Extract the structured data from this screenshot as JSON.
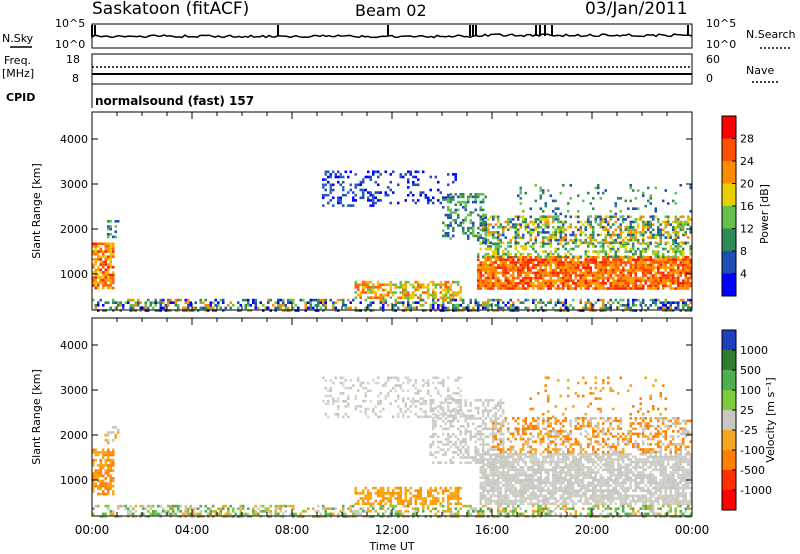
{
  "header": {
    "station": "Saskatoon (fitACF)",
    "beam": "Beam 02",
    "date": "03/Jan/2011"
  },
  "nsky_panel": {
    "left_label": "N.Sky",
    "right_label": "N.Search",
    "left_ticks": [
      "10^5",
      "10^0"
    ],
    "right_ticks": [
      "10^5",
      "10^0"
    ]
  },
  "freq_panel": {
    "left_label_1": "Freq.",
    "left_label_2": "[MHz]",
    "right_label": "Nave",
    "left_ticks": [
      "18",
      "8"
    ],
    "right_ticks": [
      "60",
      "0"
    ]
  },
  "cpid": {
    "label": "CPID",
    "value": "normalsound (fast) 157"
  },
  "chart_data": [
    {
      "type": "heatmap",
      "quantity": "Power",
      "ylabel": "Slant Range [km]",
      "xlabel": "Time UT",
      "x_range": [
        "00:00",
        "24:00"
      ],
      "xticks": [
        "00:00",
        "04:00",
        "08:00",
        "12:00",
        "16:00",
        "20:00",
        "00:00"
      ],
      "yticks": [
        1000,
        2000,
        3000,
        4000
      ],
      "ylim": [
        200,
        4600
      ],
      "colorbar": {
        "label": "Power [dB]",
        "ticks": [
          "4",
          "8",
          "12",
          "16",
          "20",
          "24",
          "28"
        ],
        "colors": [
          "#0000ff",
          "#1f4fb4",
          "#2e8b57",
          "#66c04e",
          "#e8d000",
          "#ff8c00",
          "#ff5000",
          "#ff0000"
        ]
      }
    },
    {
      "type": "heatmap",
      "quantity": "Velocity",
      "ylabel": "Slant Range [km]",
      "xlabel": "Time UT",
      "x_range": [
        "00:00",
        "24:00"
      ],
      "xticks": [
        "00:00",
        "04:00",
        "08:00",
        "12:00",
        "16:00",
        "20:00",
        "00:00"
      ],
      "yticks": [
        1000,
        2000,
        3000,
        4000
      ],
      "ylim": [
        200,
        4600
      ],
      "colorbar": {
        "label": "Velocity [m s⁻¹]",
        "ticks": [
          "1000",
          "500",
          "100",
          "25",
          "-25",
          "-100",
          "-500",
          "-1000"
        ],
        "colors": [
          "#1f3fbf",
          "#2e7d32",
          "#4caf50",
          "#7ccc3c",
          "#c8c8c0",
          "#f5a623",
          "#ff7f00",
          "#ff3000",
          "#ff0000"
        ]
      }
    }
  ],
  "time_axis": {
    "label": "Time UT",
    "ticks": [
      "00:00",
      "04:00",
      "08:00",
      "12:00",
      "16:00",
      "20:00",
      "00:00"
    ]
  },
  "power_features": [
    {
      "h0": 0.0,
      "h1": 0.9,
      "r0": 700,
      "r1": 1700,
      "colors": [
        "#ff2000",
        "#ff6000",
        "#ffa000",
        "#e8d000"
      ],
      "d": 0.75
    },
    {
      "h0": 0.6,
      "h1": 1.2,
      "r0": 1800,
      "r1": 2200,
      "colors": [
        "#2e8b57",
        "#1f4fb4",
        "#66c04e"
      ],
      "d": 0.4
    },
    {
      "h0": 9.2,
      "h1": 11.6,
      "r0": 2500,
      "r1": 3300,
      "colors": [
        "#1f4fb4",
        "#0000ff",
        "#2e5fbf"
      ],
      "d": 0.35
    },
    {
      "h0": 11.6,
      "h1": 14.6,
      "r0": 2600,
      "r1": 3300,
      "colors": [
        "#1f4fb4",
        "#0000ff"
      ],
      "d": 0.18
    },
    {
      "h0": 14.0,
      "h1": 15.8,
      "r0": 1800,
      "r1": 2800,
      "colors": [
        "#1f4fb4",
        "#2e8b57",
        "#66c04e"
      ],
      "d": 0.4
    },
    {
      "h0": 10.5,
      "h1": 14.8,
      "r0": 450,
      "r1": 850,
      "colors": [
        "#ff6000",
        "#ffa000",
        "#e8d000",
        "#66c04e"
      ],
      "d": 0.6
    },
    {
      "h0": 15.4,
      "h1": 24.0,
      "r0": 700,
      "r1": 1400,
      "colors": [
        "#ff2000",
        "#ff5000",
        "#ff8c00",
        "#ffa000"
      ],
      "d": 0.85
    },
    {
      "h0": 15.4,
      "h1": 24.0,
      "r0": 1400,
      "r1": 1700,
      "colors": [
        "#66c04e",
        "#e8d000",
        "#2e8b57"
      ],
      "d": 0.45
    },
    {
      "h0": 15.4,
      "h1": 24.0,
      "r0": 1700,
      "r1": 2300,
      "colors": [
        "#ff8c00",
        "#e8d000",
        "#66c04e",
        "#2e8b57",
        "#1f4fb4"
      ],
      "d": 0.55
    },
    {
      "h0": 17.0,
      "h1": 24.0,
      "r0": 2300,
      "r1": 3000,
      "colors": [
        "#2e8b57",
        "#66c04e",
        "#1f4fb4"
      ],
      "d": 0.1
    },
    {
      "h0": 0.0,
      "h1": 24.0,
      "r0": 200,
      "r1": 450,
      "colors": [
        "#0000ff",
        "#1f4fb4",
        "#2e8b57",
        "#66c04e",
        "#ff8c00"
      ],
      "d": 0.5
    }
  ],
  "velocity_features": [
    {
      "h0": 0.0,
      "h1": 0.9,
      "r0": 700,
      "r1": 1700,
      "colors": [
        "#ff7f00",
        "#f5a623",
        "#ffa000"
      ],
      "d": 0.7
    },
    {
      "h0": 0.5,
      "h1": 1.1,
      "r0": 1800,
      "r1": 2200,
      "colors": [
        "#c8c8c0",
        "#f5a623"
      ],
      "d": 0.4
    },
    {
      "h0": 9.2,
      "h1": 14.8,
      "r0": 2400,
      "r1": 3300,
      "colors": [
        "#c8c8c0",
        "#d8d8d0"
      ],
      "d": 0.3
    },
    {
      "h0": 13.5,
      "h1": 16.5,
      "r0": 1400,
      "r1": 2800,
      "colors": [
        "#c8c8c0",
        "#d0d0c8"
      ],
      "d": 0.45
    },
    {
      "h0": 10.5,
      "h1": 14.8,
      "r0": 450,
      "r1": 850,
      "colors": [
        "#f5a623",
        "#ffa500",
        "#ff9000"
      ],
      "d": 0.6
    },
    {
      "h0": 15.5,
      "h1": 24.0,
      "r0": 500,
      "r1": 1600,
      "colors": [
        "#c8c8c0",
        "#d0d0c8"
      ],
      "d": 0.8
    },
    {
      "h0": 16.0,
      "h1": 24.0,
      "r0": 1600,
      "r1": 2400,
      "colors": [
        "#ff7f00",
        "#f5a623",
        "#c8c8c0"
      ],
      "d": 0.45
    },
    {
      "h0": 17.5,
      "h1": 23.0,
      "r0": 2400,
      "r1": 3300,
      "colors": [
        "#ff7f00",
        "#f5a623"
      ],
      "d": 0.08
    },
    {
      "h0": 0.0,
      "h1": 24.0,
      "r0": 200,
      "r1": 450,
      "colors": [
        "#f5a623",
        "#7ccc3c",
        "#4caf50",
        "#c8c8c0"
      ],
      "d": 0.5
    }
  ]
}
